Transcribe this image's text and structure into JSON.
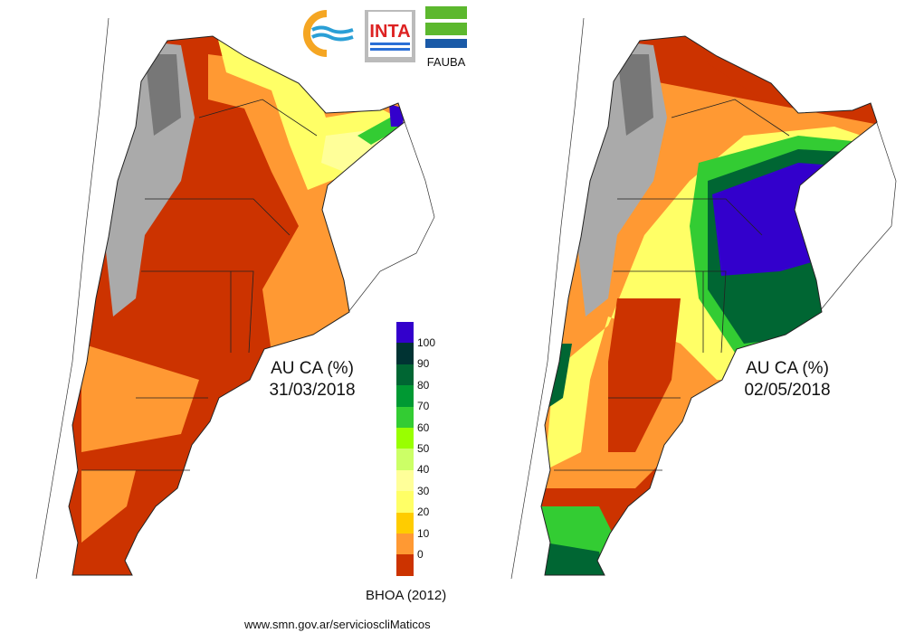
{
  "maps": [
    {
      "title": "AU CA (%)",
      "date": "31/03/2018"
    },
    {
      "title": "AU CA (%)",
      "date": "02/05/2018"
    }
  ],
  "legend": {
    "ticks": [
      "100",
      "90",
      "80",
      "70",
      "60",
      "50",
      "40",
      "30",
      "20",
      "10",
      "0"
    ],
    "colors": [
      "#3300cc",
      "#003333",
      "#006633",
      "#009933",
      "#33cc33",
      "#99ff00",
      "#ccff66",
      "#ffff99",
      "#ffff66",
      "#ffcc00",
      "#ff9933",
      "#cc3300"
    ],
    "source": "BHOA (2012)"
  },
  "logos": {
    "inta": "INTA",
    "fauba": "FAUBA"
  },
  "footer": {
    "url": "www.smn.gov.ar/servicioscliMaticos"
  }
}
